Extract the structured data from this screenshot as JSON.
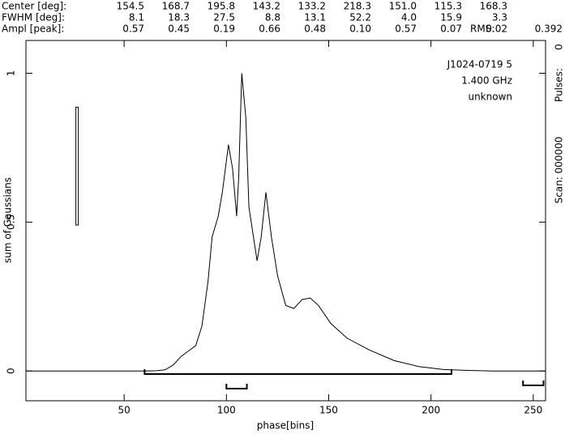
{
  "chart_data": {
    "type": "line",
    "header_table": [
      {
        "label": "Center [deg]:",
        "values": [
          "154.5",
          "168.7",
          "195.8",
          "143.2",
          "133.2",
          "218.3",
          "151.0",
          "115.3",
          "168.3"
        ]
      },
      {
        "label": "FWHM  [deg]:",
        "values": [
          "8.1",
          "18.3",
          "27.5",
          "8.8",
          "13.1",
          "52.2",
          "4.0",
          "15.9",
          "3.3"
        ]
      },
      {
        "label": "Ampl  [peak]:",
        "values": [
          "0.57",
          "0.45",
          "0.19",
          "0.66",
          "0.48",
          "0.10",
          "0.57",
          "0.07",
          "0.02"
        ]
      }
    ],
    "rms_label": "RMS:",
    "rms_value": "0.392",
    "annotations": [
      "J1024-0719 5",
      "1.400 GHz",
      "unknown"
    ],
    "right_labels": [
      "Scan: 000000",
      "Pulses:",
      "0"
    ],
    "xlabel": "phase[bins]",
    "ylabel": "sum of Gaussians",
    "xlim": [
      2,
      256
    ],
    "ylim": [
      -0.1,
      1.11
    ],
    "xticks": [
      50,
      100,
      150,
      200,
      250
    ],
    "yticks": [
      0,
      0.5,
      1
    ],
    "color": "#000000",
    "x": [
      2,
      60,
      66,
      70,
      74,
      78,
      82,
      85,
      88,
      91,
      93,
      96,
      98,
      101,
      103,
      105,
      106,
      107.5,
      109.5,
      111,
      115,
      117,
      119.3,
      122,
      125,
      129,
      133,
      137,
      141,
      145,
      151,
      159,
      170,
      182,
      194,
      206,
      218,
      230,
      256
    ],
    "values": [
      0,
      0,
      0.001,
      0.004,
      0.02,
      0.05,
      0.07,
      0.085,
      0.15,
      0.3,
      0.45,
      0.52,
      0.6,
      0.76,
      0.68,
      0.52,
      0.65,
      1.0,
      0.85,
      0.55,
      0.37,
      0.45,
      0.6,
      0.45,
      0.32,
      0.22,
      0.21,
      0.24,
      0.245,
      0.22,
      0.16,
      0.11,
      0.07,
      0.035,
      0.015,
      0.005,
      0.002,
      0,
      0
    ],
    "brackets": [
      [
        60,
        210
      ],
      [
        100,
        110
      ],
      [
        245,
        255
      ]
    ],
    "scale_bar": {
      "x": 27,
      "ymin": 0.49,
      "ymax": 0.886
    }
  }
}
